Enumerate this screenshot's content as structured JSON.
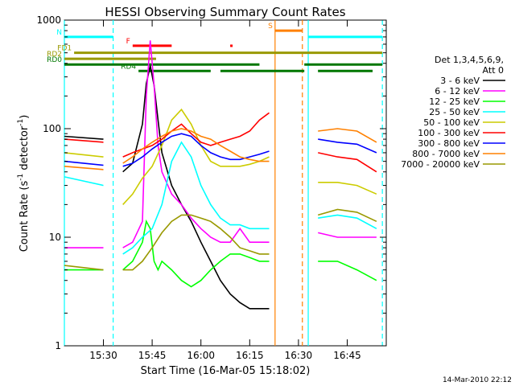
{
  "chart_data": {
    "type": "line",
    "title": "HESSI Observing Summary Count Rates",
    "xlabel": "Start Time (16-Mar-05 15:18:02)",
    "ylabel_main": "Count Rate (s",
    "ylabel_sup1": "-1",
    "ylabel_mid": " detector",
    "ylabel_sup2": "-1",
    "ylabel_end": ")",
    "yscale": "log",
    "ylim": [
      1,
      1000
    ],
    "xlim_minutes": [
      15.3,
      16.95
    ],
    "x_ticks": [
      "15:30",
      "15:45",
      "16:00",
      "16:15",
      "16:30",
      "16:45"
    ],
    "x_tick_values": [
      15.5,
      15.75,
      16.0,
      16.25,
      16.5,
      16.75
    ],
    "y_ticks": [
      "1",
      "10",
      "100",
      "1000"
    ],
    "y_tick_values": [
      1,
      10,
      100,
      1000
    ],
    "legend_title_1": "Det 1,3,4,5,6,9,",
    "legend_title_2": "Att 0",
    "series": [
      {
        "name": "3 - 6 keV",
        "color": "#000000",
        "x": [
          15.3,
          15.5,
          15.55,
          15.6,
          15.65,
          15.7,
          15.72,
          15.74,
          15.76,
          15.78,
          15.8,
          15.85,
          15.9,
          15.95,
          16.0,
          16.05,
          16.1,
          16.15,
          16.2,
          16.25,
          16.3,
          16.35
        ],
        "values": [
          85,
          80,
          null,
          40,
          48,
          110,
          260,
          380,
          250,
          120,
          60,
          30,
          20,
          14,
          9,
          6,
          4,
          3,
          2.5,
          2.2,
          2.2,
          2.2
        ]
      },
      {
        "name": "6 - 12 keV",
        "color": "#ff00ff",
        "x": [
          15.3,
          15.5,
          15.55,
          15.6,
          15.65,
          15.7,
          15.72,
          15.74,
          15.76,
          15.78,
          15.8,
          15.85,
          15.9,
          15.95,
          16.0,
          16.05,
          16.1,
          16.15,
          16.2,
          16.25,
          16.3,
          16.35,
          16.55,
          16.6,
          16.7,
          16.8,
          16.9
        ],
        "values": [
          8,
          8,
          null,
          8,
          9,
          14,
          200,
          650,
          250,
          70,
          40,
          25,
          20,
          15,
          12,
          10,
          9,
          9,
          12,
          9,
          9,
          9,
          null,
          11,
          10,
          10,
          10
        ]
      },
      {
        "name": "12 - 25 keV",
        "color": "#00ff00",
        "x": [
          15.3,
          15.5,
          15.55,
          15.6,
          15.65,
          15.7,
          15.72,
          15.74,
          15.76,
          15.78,
          15.8,
          15.85,
          15.9,
          15.95,
          16.0,
          16.05,
          16.1,
          16.15,
          16.2,
          16.25,
          16.3,
          16.35,
          16.55,
          16.6,
          16.7,
          16.8,
          16.9
        ],
        "values": [
          5,
          5,
          null,
          5,
          6,
          9,
          14,
          12,
          6,
          5,
          6,
          5,
          4,
          3.5,
          4,
          5,
          6,
          7,
          7,
          6.5,
          6,
          6,
          null,
          6,
          6,
          5,
          4
        ]
      },
      {
        "name": "25 - 50 keV",
        "color": "#00ffff",
        "x": [
          15.3,
          15.5,
          15.55,
          15.6,
          15.65,
          15.7,
          15.75,
          15.8,
          15.85,
          15.9,
          15.95,
          16.0,
          16.05,
          16.1,
          16.15,
          16.2,
          16.25,
          16.3,
          16.35,
          16.55,
          16.6,
          16.7,
          16.8,
          16.9
        ],
        "values": [
          36,
          30,
          null,
          7,
          8,
          10,
          12,
          20,
          50,
          75,
          55,
          30,
          20,
          15,
          13,
          13,
          12,
          12,
          12,
          null,
          15,
          16,
          15,
          12
        ]
      },
      {
        "name": "50 - 100 keV",
        "color": "#cccc00",
        "x": [
          15.3,
          15.5,
          15.55,
          15.6,
          15.65,
          15.7,
          15.75,
          15.8,
          15.85,
          15.9,
          15.95,
          16.0,
          16.05,
          16.1,
          16.15,
          16.2,
          16.25,
          16.3,
          16.35,
          16.55,
          16.6,
          16.7,
          16.8,
          16.9
        ],
        "values": [
          60,
          55,
          null,
          20,
          25,
          35,
          45,
          70,
          120,
          150,
          110,
          70,
          50,
          45,
          45,
          45,
          47,
          50,
          55,
          null,
          32,
          32,
          30,
          25
        ]
      },
      {
        "name": "100 - 300 keV",
        "color": "#ff0000",
        "x": [
          15.3,
          15.5,
          15.55,
          15.6,
          15.65,
          15.7,
          15.75,
          15.8,
          15.85,
          15.9,
          15.95,
          16.0,
          16.05,
          16.1,
          16.15,
          16.2,
          16.25,
          16.3,
          16.35,
          16.55,
          16.6,
          16.7,
          16.8,
          16.9
        ],
        "values": [
          80,
          75,
          null,
          55,
          60,
          65,
          70,
          80,
          95,
          110,
          90,
          75,
          70,
          75,
          80,
          85,
          95,
          120,
          140,
          null,
          60,
          55,
          52,
          40
        ]
      },
      {
        "name": "300 - 800 keV",
        "color": "#0000ff",
        "x": [
          15.3,
          15.5,
          15.55,
          15.6,
          15.65,
          15.7,
          15.75,
          15.8,
          15.85,
          15.9,
          15.95,
          16.0,
          16.05,
          16.1,
          16.15,
          16.2,
          16.25,
          16.3,
          16.35,
          16.55,
          16.6,
          16.7,
          16.8,
          16.9
        ],
        "values": [
          50,
          46,
          null,
          45,
          48,
          55,
          65,
          75,
          85,
          90,
          85,
          70,
          60,
          55,
          52,
          52,
          55,
          58,
          62,
          null,
          80,
          75,
          72,
          60
        ]
      },
      {
        "name": "800 - 7000 keV",
        "color": "#ff8000",
        "x": [
          15.3,
          15.5,
          15.55,
          15.6,
          15.65,
          15.7,
          15.75,
          15.8,
          15.85,
          15.9,
          15.95,
          16.0,
          16.05,
          16.1,
          16.15,
          16.2,
          16.25,
          16.3,
          16.35,
          16.55,
          16.6,
          16.7,
          16.8,
          16.9
        ],
        "values": [
          45,
          42,
          null,
          48,
          55,
          65,
          75,
          85,
          95,
          100,
          95,
          85,
          80,
          70,
          62,
          55,
          52,
          50,
          50,
          null,
          95,
          100,
          95,
          75
        ]
      },
      {
        "name": "7000 - 20000 keV",
        "color": "#999900",
        "x": [
          15.3,
          15.5,
          15.55,
          15.6,
          15.65,
          15.7,
          15.75,
          15.8,
          15.85,
          15.9,
          15.95,
          16.0,
          16.05,
          16.1,
          16.15,
          16.2,
          16.25,
          16.3,
          16.35,
          16.55,
          16.6,
          16.7,
          16.8,
          16.9
        ],
        "values": [
          5.5,
          5,
          null,
          5,
          5,
          6,
          8,
          11,
          14,
          16,
          16,
          15,
          14,
          12,
          10,
          8,
          7.5,
          7,
          7,
          null,
          16,
          18,
          17,
          14
        ]
      }
    ],
    "flag_bars": [
      {
        "label": "N",
        "color": "#00ffff",
        "y": 700,
        "segments": [
          [
            15.3,
            15.55
          ],
          [
            16.55,
            16.93
          ]
        ]
      },
      {
        "label": "S",
        "color": "#ff8000",
        "y": 800,
        "segments": [
          [
            16.38,
            16.52
          ]
        ]
      },
      {
        "label": "F",
        "color": "#ff0000",
        "y": 580,
        "segments": [
          [
            15.65,
            15.85
          ],
          [
            16.15,
            16.16
          ]
        ]
      },
      {
        "label": "FD1",
        "color": "#999900",
        "y": 500,
        "segments": [
          [
            15.35,
            16.93
          ]
        ]
      },
      {
        "label": "RD2",
        "color": "#999900",
        "y": 440,
        "segments": [
          [
            15.3,
            15.77
          ]
        ]
      },
      {
        "label": "RD0",
        "color": "#007700",
        "y": 390,
        "segments": [
          [
            15.3,
            15.75
          ],
          [
            15.75,
            16.3
          ],
          [
            16.53,
            16.93
          ]
        ]
      },
      {
        "label": "RD4",
        "color": "#007700",
        "y": 340,
        "segments": [
          [
            15.68,
            16.05
          ],
          [
            16.1,
            16.53
          ],
          [
            16.6,
            16.88
          ]
        ]
      }
    ],
    "vertical_markers": [
      {
        "x": 15.3,
        "color": "#00ffff",
        "style": "solid"
      },
      {
        "x": 15.55,
        "color": "#00ffff",
        "style": "dashed"
      },
      {
        "x": 16.55,
        "color": "#00ffff",
        "style": "solid"
      },
      {
        "x": 16.93,
        "color": "#00ffff",
        "style": "dashed"
      },
      {
        "x": 16.38,
        "color": "#ff8000",
        "style": "solid"
      },
      {
        "x": 16.52,
        "color": "#ff8000",
        "style": "dashed"
      }
    ]
  },
  "footer": {
    "timestamp": "14-Mar-2010 22:12"
  }
}
